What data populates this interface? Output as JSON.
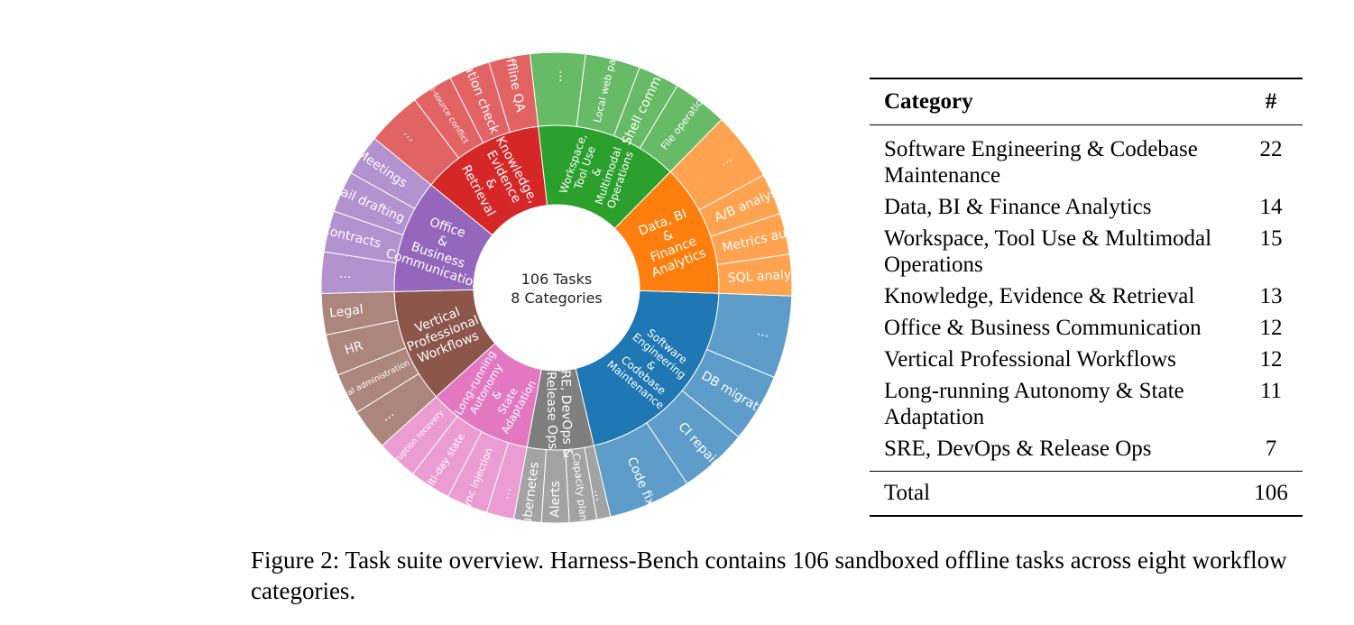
{
  "chart_data": {
    "type": "sunburst",
    "center_label": [
      "106 Tasks",
      "8 Categories"
    ],
    "total": 106,
    "categories": [
      {
        "name": [
          "Software",
          "Engineering",
          "&",
          "Codebase",
          "Maintenance"
        ],
        "color": "#1f77b4",
        "value": 22,
        "children": [
          {
            "name": "...",
            "value": 6
          },
          {
            "name": "DB migration",
            "value": 5
          },
          {
            "name": "CI repair",
            "value": 5
          },
          {
            "name": "Code fix",
            "value": 6
          }
        ]
      },
      {
        "name": [
          "SRE, DevOps &",
          "Release Ops"
        ],
        "color": "#7f7f7f",
        "value": 7,
        "children": [
          {
            "name": "...",
            "value": 1
          },
          {
            "name": "Capacity planning",
            "value": 2
          },
          {
            "name": "Alerts",
            "value": 2
          },
          {
            "name": "Kubernetes",
            "value": 2
          }
        ]
      },
      {
        "name": [
          "Long-running",
          "Autonomy",
          "&",
          "State",
          "Adaptation"
        ],
        "color": "#e377c2",
        "value": 11,
        "children": [
          {
            "name": "...",
            "value": 2
          },
          {
            "name": "Async injection",
            "value": 3
          },
          {
            "name": "Multi-day state",
            "value": 3
          },
          {
            "name": "Interruption recovery",
            "value": 3
          }
        ]
      },
      {
        "name": [
          "Vertical",
          "Professional",
          "Workflows"
        ],
        "color": "#8c564b",
        "value": 12,
        "children": [
          {
            "name": "...",
            "value": 3
          },
          {
            "name": "Medical administration",
            "value": 3
          },
          {
            "name": "HR",
            "value": 3
          },
          {
            "name": "Legal",
            "value": 3
          }
        ]
      },
      {
        "name": [
          "Office",
          "&",
          "Business",
          "Communication"
        ],
        "color": "#9467bd",
        "value": 12,
        "children": [
          {
            "name": "...",
            "value": 3
          },
          {
            "name": "Contracts",
            "value": 3
          },
          {
            "name": "Email drafting",
            "value": 3
          },
          {
            "name": "Meetings",
            "value": 3
          }
        ]
      },
      {
        "name": [
          "Knowledge,",
          "Evidence",
          "&",
          "Retrieval"
        ],
        "color": "#d62728",
        "value": 13,
        "children": [
          {
            "name": "...",
            "value": 4
          },
          {
            "name": "Multi-source conflict",
            "value": 3
          },
          {
            "name": "Citation check",
            "value": 3
          },
          {
            "name": "Offline QA",
            "value": 3
          }
        ]
      },
      {
        "name": [
          "Workspace,",
          "Tool Use",
          "&",
          "Multimodal",
          "Operations"
        ],
        "color": "#2ca02c",
        "value": 15,
        "children": [
          {
            "name": "...",
            "value": 4
          },
          {
            "name": "Local web pages",
            "value": 4
          },
          {
            "name": "Shell commands",
            "value": 3
          },
          {
            "name": "File operations",
            "value": 4
          }
        ]
      },
      {
        "name": [
          "Data, BI",
          "&",
          "Finance",
          "Analytics"
        ],
        "color": "#ff7f0e",
        "value": 14,
        "children": [
          {
            "name": "...",
            "value": 5
          },
          {
            "name": "A/B analysis",
            "value": 3
          },
          {
            "name": "Metrics audit",
            "value": 3
          },
          {
            "name": "SQL analysis",
            "value": 3
          }
        ]
      }
    ]
  },
  "table": {
    "header": {
      "category": "Category",
      "count": "#"
    },
    "rows": [
      {
        "category": "Software Engineering & Codebase Maintenance",
        "count": "22"
      },
      {
        "category": "Data, BI & Finance Analytics",
        "count": "14"
      },
      {
        "category": "Workspace, Tool Use & Multimodal Operations",
        "count": "15"
      },
      {
        "category": "Knowledge, Evidence & Retrieval",
        "count": "13"
      },
      {
        "category": "Office & Business Communication",
        "count": "12"
      },
      {
        "category": "Vertical Professional Workflows",
        "count": "12"
      },
      {
        "category": "Long-running Autonomy & State Adaptation",
        "count": "11"
      },
      {
        "category": "SRE, DevOps & Release Ops",
        "count": "7"
      }
    ],
    "total": {
      "label": "Total",
      "count": "106"
    }
  },
  "caption": "Figure 2: Task suite overview. Harness-Bench contains 106 sandboxed offline tasks across eight workflow categories."
}
